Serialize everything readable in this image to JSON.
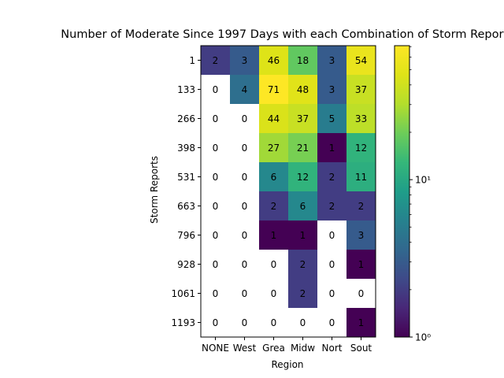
{
  "chart_data": {
    "type": "heatmap",
    "title": "Number of Moderate Since 1997 Days with each Combination of Storm Reports",
    "xlabel": "Region",
    "ylabel": "Storm Reports",
    "x_categories": [
      "NONE",
      "West",
      "Grea",
      "Midw",
      "Nort",
      "Sout"
    ],
    "y_categories": [
      "1",
      "133",
      "266",
      "398",
      "531",
      "663",
      "796",
      "928",
      "1061",
      "1193"
    ],
    "values": [
      [
        2,
        3,
        46,
        18,
        3,
        54
      ],
      [
        0,
        4,
        71,
        48,
        3,
        37
      ],
      [
        0,
        0,
        44,
        37,
        5,
        33
      ],
      [
        0,
        0,
        27,
        21,
        1,
        12
      ],
      [
        0,
        0,
        6,
        12,
        2,
        11
      ],
      [
        0,
        0,
        2,
        6,
        2,
        2
      ],
      [
        0,
        0,
        1,
        1,
        0,
        3
      ],
      [
        0,
        0,
        0,
        2,
        0,
        1
      ],
      [
        0,
        0,
        0,
        2,
        0,
        0
      ],
      [
        0,
        0,
        0,
        0,
        0,
        1
      ]
    ],
    "color_scale": "log",
    "colormap": "viridis",
    "zero_color": "#ffffff",
    "vmin": 1,
    "vmax": 71,
    "colorbar_ticks": [
      {
        "value": 1,
        "label": "10⁰"
      },
      {
        "value": 10,
        "label": "10¹"
      }
    ]
  }
}
